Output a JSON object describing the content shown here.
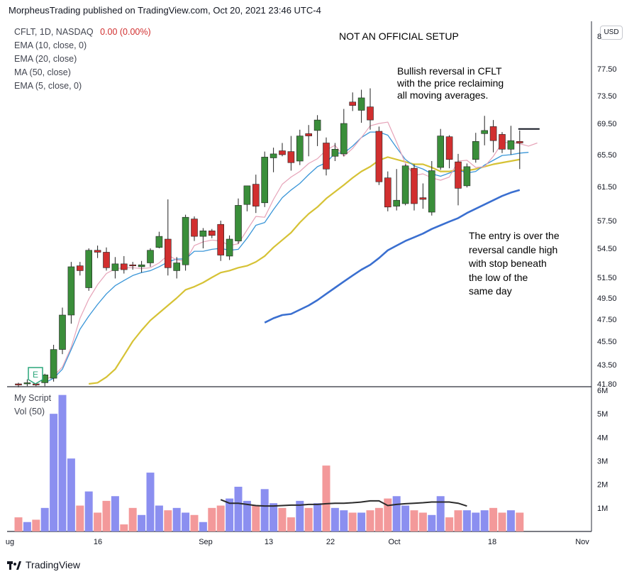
{
  "header": {
    "publisher": "MorpheusTrading published on TradingView.com, Oct 20, 2021 23:46 UTC-4"
  },
  "legend": {
    "symbol": "CFLT, 1D, NASDAQ",
    "change": "0.00 (0.00%)",
    "indicators": [
      "EMA (10, close, 0)",
      "EMA (20, close)",
      "MA (50, close)",
      "EMA (5, close, 0)"
    ]
  },
  "annotations": {
    "title": "NOT AN OFFICIAL SETUP",
    "top": "Bullish reversal in CFLT\nwith the price reclaiming\nall moving averages.",
    "bottom": "The entry is over the\nreversal candle high\nwith stop beneath\nthe low of the\nsame day"
  },
  "volume_pane": {
    "labels": [
      "My Script",
      "Vol (50)"
    ]
  },
  "currency_button": "USD",
  "earnings_marker": "E",
  "footer": {
    "brand": "TradingView"
  },
  "colors": {
    "up": "#3a8e3a",
    "down": "#d12f2f",
    "ema10": "#3a96d8",
    "ema20": "#d6c235",
    "ma50": "#3a6fd0",
    "ema5": "#e6a3b8",
    "vol_up": "#8b8ff0",
    "vol_down": "#f3999a",
    "vol_ma": "#2b2b2b"
  },
  "chart_data": {
    "type": "candlestick",
    "price_axis": {
      "ticks": [
        "41.80",
        "43.50",
        "45.50",
        "47.50",
        "49.50",
        "51.50",
        "54.50",
        "57.50",
        "61.50",
        "65.50",
        "69.50",
        "73.50",
        "77.50",
        "8"
      ],
      "range": [
        41.8,
        82
      ]
    },
    "volume_axis": {
      "ticks": [
        "1M",
        "2M",
        "3M",
        "4M",
        "5M",
        "6M"
      ],
      "range": [
        0,
        6
      ]
    },
    "time_axis": {
      "ticks": [
        "ug",
        "16",
        "Sep",
        "13",
        "22",
        "Oct",
        "18",
        "Nov"
      ]
    },
    "candles": [
      {
        "o": 41.8,
        "h": 41.9,
        "l": 41.5,
        "c": 41.7
      },
      {
        "o": 41.8,
        "h": 42.2,
        "l": 41.6,
        "c": 41.9
      },
      {
        "o": 41.8,
        "h": 42.0,
        "l": 41.6,
        "c": 41.7
      },
      {
        "o": 41.9,
        "h": 42.7,
        "l": 41.6,
        "c": 42.6
      },
      {
        "o": 42.3,
        "h": 45.2,
        "l": 42.0,
        "c": 44.8
      },
      {
        "o": 44.8,
        "h": 48.6,
        "l": 44.4,
        "c": 47.9
      },
      {
        "o": 47.9,
        "h": 53.1,
        "l": 47.1,
        "c": 52.6
      },
      {
        "o": 52.7,
        "h": 53.1,
        "l": 51.7,
        "c": 52.2
      },
      {
        "o": 50.5,
        "h": 54.5,
        "l": 50.2,
        "c": 54.3
      },
      {
        "o": 54.3,
        "h": 54.8,
        "l": 53.5,
        "c": 54.1
      },
      {
        "o": 54.1,
        "h": 54.6,
        "l": 52.2,
        "c": 52.5
      },
      {
        "o": 52.2,
        "h": 53.6,
        "l": 51.4,
        "c": 52.9
      },
      {
        "o": 52.9,
        "h": 53.7,
        "l": 51.9,
        "c": 52.3
      },
      {
        "o": 52.8,
        "h": 53.1,
        "l": 52.3,
        "c": 52.7
      },
      {
        "o": 52.6,
        "h": 53.2,
        "l": 52.0,
        "c": 52.8
      },
      {
        "o": 53.0,
        "h": 54.5,
        "l": 52.6,
        "c": 54.3
      },
      {
        "o": 54.6,
        "h": 56.3,
        "l": 54.5,
        "c": 55.8
      },
      {
        "o": 55.5,
        "h": 60.0,
        "l": 51.7,
        "c": 52.5
      },
      {
        "o": 52.2,
        "h": 53.6,
        "l": 51.4,
        "c": 53.0
      },
      {
        "o": 52.8,
        "h": 58.2,
        "l": 52.2,
        "c": 57.9
      },
      {
        "o": 57.7,
        "h": 58.0,
        "l": 55.3,
        "c": 55.8
      },
      {
        "o": 55.8,
        "h": 56.7,
        "l": 54.5,
        "c": 56.4
      },
      {
        "o": 56.4,
        "h": 56.6,
        "l": 55.6,
        "c": 55.9
      },
      {
        "o": 57.1,
        "h": 57.5,
        "l": 53.2,
        "c": 53.8
      },
      {
        "o": 53.7,
        "h": 55.9,
        "l": 53.3,
        "c": 55.5
      },
      {
        "o": 55.3,
        "h": 60.1,
        "l": 55.0,
        "c": 59.3
      },
      {
        "o": 59.4,
        "h": 61.6,
        "l": 58.6,
        "c": 61.6
      },
      {
        "o": 61.8,
        "h": 63.0,
        "l": 58.4,
        "c": 59.2
      },
      {
        "o": 59.6,
        "h": 65.9,
        "l": 59.1,
        "c": 65.2
      },
      {
        "o": 65.1,
        "h": 66.4,
        "l": 63.3,
        "c": 65.6
      },
      {
        "o": 66.0,
        "h": 67.0,
        "l": 65.3,
        "c": 65.5
      },
      {
        "o": 65.9,
        "h": 67.9,
        "l": 63.5,
        "c": 64.5
      },
      {
        "o": 64.7,
        "h": 68.7,
        "l": 64.2,
        "c": 67.9
      },
      {
        "o": 68.2,
        "h": 69.3,
        "l": 65.3,
        "c": 67.9
      },
      {
        "o": 68.6,
        "h": 70.7,
        "l": 66.6,
        "c": 70.0
      },
      {
        "o": 67.0,
        "h": 67.7,
        "l": 62.9,
        "c": 63.7
      },
      {
        "o": 65.3,
        "h": 67.0,
        "l": 64.7,
        "c": 66.2
      },
      {
        "o": 65.6,
        "h": 71.6,
        "l": 65.3,
        "c": 69.5
      },
      {
        "o": 72.6,
        "h": 74.0,
        "l": 71.3,
        "c": 72.1
      },
      {
        "o": 71.4,
        "h": 74.4,
        "l": 69.6,
        "c": 73.2
      },
      {
        "o": 71.9,
        "h": 74.6,
        "l": 68.7,
        "c": 70.0
      },
      {
        "o": 68.5,
        "h": 69.1,
        "l": 61.7,
        "c": 62.1
      },
      {
        "o": 62.6,
        "h": 63.4,
        "l": 58.6,
        "c": 59.1
      },
      {
        "o": 59.2,
        "h": 63.7,
        "l": 58.7,
        "c": 59.9
      },
      {
        "o": 59.5,
        "h": 64.3,
        "l": 59.3,
        "c": 64.1
      },
      {
        "o": 63.8,
        "h": 64.3,
        "l": 58.7,
        "c": 59.5
      },
      {
        "o": 60.2,
        "h": 61.9,
        "l": 58.9,
        "c": 60.0
      },
      {
        "o": 58.5,
        "h": 64.7,
        "l": 58.1,
        "c": 63.5
      },
      {
        "o": 63.9,
        "h": 68.8,
        "l": 63.6,
        "c": 67.9
      },
      {
        "o": 67.8,
        "h": 68.0,
        "l": 63.8,
        "c": 64.9
      },
      {
        "o": 64.6,
        "h": 65.6,
        "l": 59.3,
        "c": 61.3
      },
      {
        "o": 61.6,
        "h": 64.4,
        "l": 61.4,
        "c": 64.0
      },
      {
        "o": 64.9,
        "h": 68.3,
        "l": 64.5,
        "c": 67.2
      },
      {
        "o": 68.2,
        "h": 70.6,
        "l": 66.7,
        "c": 68.6
      },
      {
        "o": 69.1,
        "h": 70.0,
        "l": 65.8,
        "c": 67.3
      },
      {
        "o": 68.1,
        "h": 68.4,
        "l": 65.7,
        "c": 66.2
      },
      {
        "o": 66.2,
        "h": 69.2,
        "l": 65.5,
        "c": 67.3
      },
      {
        "o": 67.2,
        "h": 68.6,
        "l": 63.7,
        "c": 67.0
      }
    ],
    "volume_millions": [
      0.6,
      0.4,
      0.5,
      1.0,
      5.0,
      5.8,
      3.1,
      1.1,
      1.7,
      0.8,
      1.3,
      1.5,
      0.3,
      1.0,
      0.7,
      2.5,
      1.1,
      0.9,
      1.0,
      0.8,
      0.7,
      0.4,
      1.0,
      1.1,
      1.4,
      1.9,
      1.3,
      1.1,
      1.8,
      1.2,
      1.0,
      0.6,
      1.3,
      1.0,
      1.2,
      2.8,
      1.0,
      0.9,
      0.8,
      0.8,
      0.9,
      1.0,
      1.4,
      1.5,
      1.1,
      0.9,
      0.8,
      0.7,
      1.5,
      0.6,
      0.9,
      0.9,
      0.8,
      0.9,
      1.0,
      0.8,
      0.9,
      0.8
    ],
    "volume_ma50_millions": [
      1.35,
      1.2,
      1.2,
      1.15,
      1.1,
      1.08,
      1.08,
      1.1,
      1.12,
      1.12,
      1.15,
      1.15,
      1.18,
      1.2,
      1.2,
      1.22,
      1.25,
      1.3,
      1.3,
      1.1,
      1.15,
      1.18,
      1.2,
      1.22,
      1.25,
      1.25,
      1.25,
      1.2,
      1.08
    ],
    "ema5": [
      42.2,
      42.5,
      43.3,
      45.0,
      47.6,
      49.4,
      50.8,
      51.9,
      52.4,
      52.5,
      52.5,
      52.4,
      52.5,
      53.0,
      53.8,
      53.3,
      53.2,
      54.8,
      55.2,
      55.4,
      55.3,
      54.8,
      55.0,
      56.5,
      58.0,
      57.9,
      60.0,
      61.8,
      62.7,
      63.4,
      64.4,
      65.0,
      66.1,
      66.7,
      65.3,
      66.3,
      67.7,
      69.2,
      69.5,
      69.7,
      67.1,
      64.4,
      62.9,
      63.1,
      62.6,
      62.3,
      62.7,
      64.7,
      64.8,
      63.9,
      64.0,
      65.3,
      67.0,
      67.1,
      66.9,
      66.6,
      67.0
    ],
    "ema10": [
      41.9,
      42.3,
      43.1,
      44.8,
      46.6,
      47.8,
      48.9,
      49.9,
      50.7,
      51.2,
      51.7,
      52.0,
      52.2,
      52.6,
      53.1,
      53.4,
      53.4,
      54.2,
      54.2,
      54.4,
      54.5,
      54.3,
      54.4,
      55.6,
      57.0,
      57.3,
      58.8,
      60.2,
      61.1,
      61.9,
      63.0,
      64.0,
      64.5,
      65.7,
      65.7,
      66.6,
      67.7,
      68.4,
      68.4,
      68.0,
      66.4,
      64.9,
      64.1,
      63.7,
      63.1,
      62.8,
      63.2,
      63.6,
      63.2,
      63.4,
      64.2,
      64.8,
      65.4,
      65.5,
      65.7,
      65.8
    ],
    "ema20": [
      41.8,
      41.9,
      42.4,
      43.1,
      44.3,
      45.5,
      46.5,
      47.4,
      48.1,
      48.8,
      49.5,
      50.3,
      50.6,
      51.0,
      51.5,
      52.0,
      52.2,
      52.5,
      52.7,
      53.1,
      53.7,
      54.6,
      55.4,
      56.2,
      57.3,
      58.3,
      59.1,
      60.1,
      60.9,
      61.7,
      62.6,
      63.4,
      64.0,
      64.8,
      65.2,
      64.9,
      64.6,
      64.3,
      64.3,
      63.9,
      63.4,
      63.4,
      63.6,
      63.5,
      63.7,
      64.0,
      64.3,
      64.5,
      64.7,
      64.9
    ],
    "ma50": [
      47.2,
      47.6,
      47.9,
      48.0,
      48.4,
      48.8,
      49.3,
      49.9,
      50.5,
      51.1,
      51.7,
      52.3,
      52.8,
      53.5,
      54.3,
      54.8,
      55.3,
      55.7,
      56.1,
      56.6,
      57.0,
      57.4,
      57.8,
      58.4,
      58.9,
      59.4,
      59.9,
      60.4,
      60.8,
      61.1
    ]
  }
}
